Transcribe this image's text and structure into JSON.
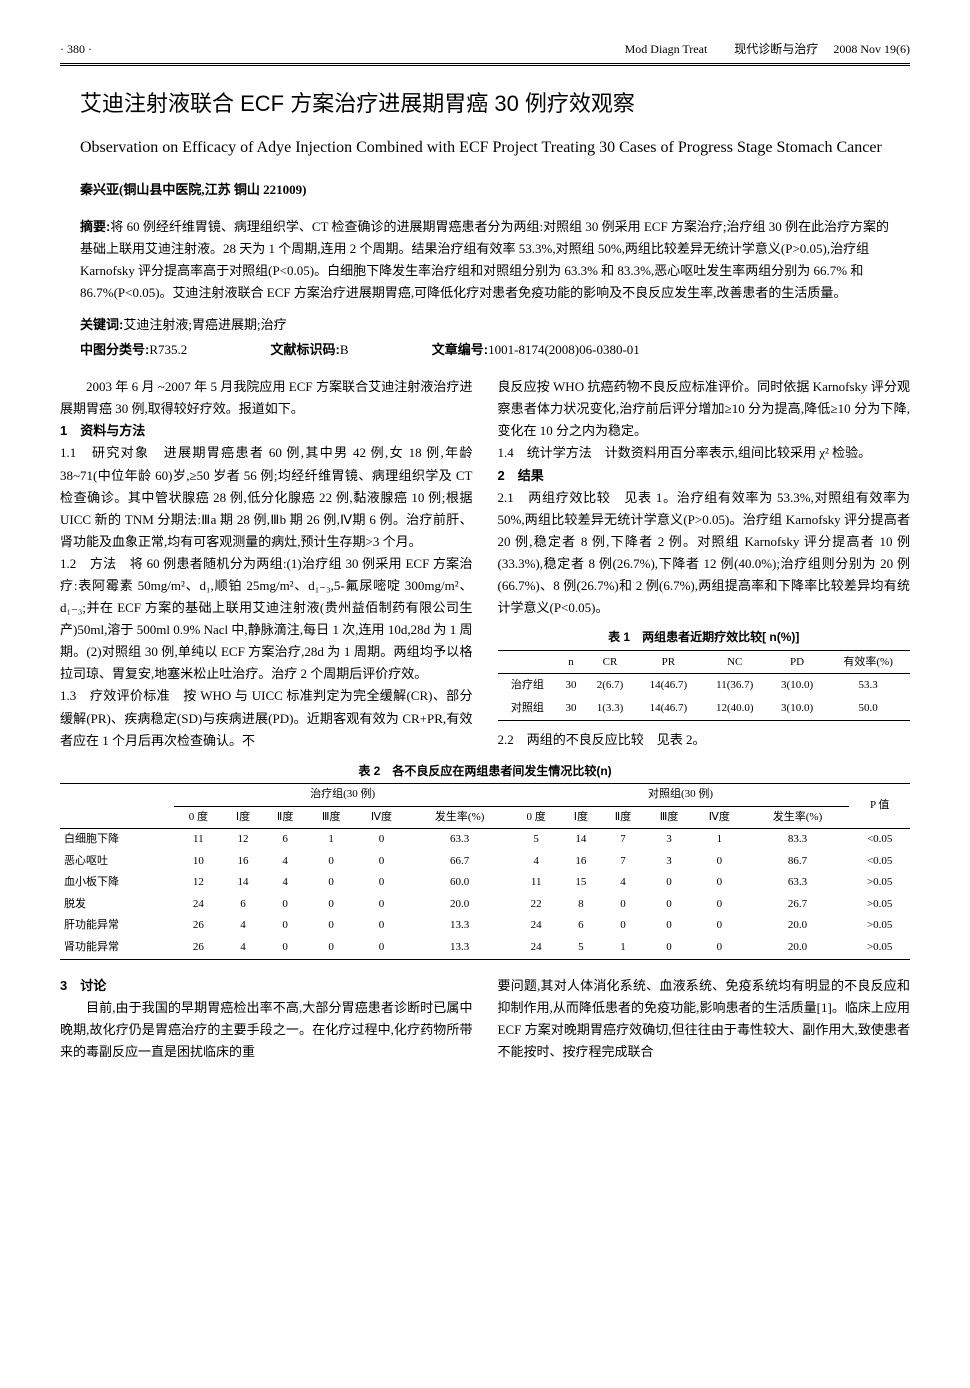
{
  "header": {
    "page_num": "· 380 ·",
    "journal_en": "Mod Diagn Treat",
    "journal_cn": "现代诊断与治疗",
    "issue": "2008  Nov 19(6)"
  },
  "title_cn": "艾迪注射液联合 ECF 方案治疗进展期胃癌 30 例疗效观察",
  "title_en": "Observation on Efficacy of Adye Injection Combined with ECF Project Treating 30 Cases of Progress Stage Stomach Cancer",
  "author": "秦兴亚(铜山县中医院,江苏 铜山 221009)",
  "abstract_label": "摘要:",
  "abstract": "将 60 例经纤维胃镜、病理组织学、CT 检查确诊的进展期胃癌患者分为两组:对照组 30 例采用 ECF 方案治疗;治疗组 30 例在此治疗方案的基础上联用艾迪注射液。28 天为 1 个周期,连用 2 个周期。结果治疗组有效率 53.3%,对照组 50%,两组比较差异无统计学意义(P>0.05),治疗组 Karnofsky 评分提高率高于对照组(P<0.05)。白细胞下降发生率治疗组和对照组分别为 63.3% 和 83.3%,恶心呕吐发生率两组分别为 66.7% 和 86.7%(P<0.05)。艾迪注射液联合 ECF 方案治疗进展期胃癌,可降低化疗对患者免疫功能的影响及不良反应发生率,改善患者的生活质量。",
  "keywords_label": "关键词:",
  "keywords": "艾迪注射液;胃癌进展期;治疗",
  "classify": {
    "clc_label": "中图分类号:",
    "clc": "R735.2",
    "doc_label": "文献标识码:",
    "doc": "B",
    "id_label": "文章编号:",
    "id": "1001-8174(2008)06-0380-01"
  },
  "body": {
    "intro": "2003 年 6 月 ~2007 年 5 月我院应用 ECF 方案联合艾迪注射液治疗进展期胃癌 30 例,取得较好疗效。报道如下。",
    "s1": "1　资料与方法",
    "s11": "1.1　研究对象　进展期胃癌患者 60 例,其中男 42 例,女 18 例,年龄 38~71(中位年龄 60)岁,≥50 岁者 56 例;均经纤维胃镜、病理组织学及 CT 检查确诊。其中管状腺癌 28 例,低分化腺癌 22 例,黏液腺癌 10 例;根据 UICC 新的 TNM 分期法:Ⅲa 期 28 例,Ⅲb 期 26 例,Ⅳ期 6 例。治疗前肝、肾功能及血象正常,均有可客观测量的病灶,预计生存期>3 个月。",
    "s12": "1.2　方法　将 60 例患者随机分为两组:(1)治疗组 30 例采用 ECF 方案治疗:表阿霉素 50mg/m²、d₁,顺铂 25mg/m²、d₁₋₃,5-氟尿嘧啶 300mg/m²、d₁₋₃;并在 ECF 方案的基础上联用艾迪注射液(贵州益佰制药有限公司生产)50ml,溶于 500ml 0.9% Nacl 中,静脉滴注,每日 1 次,连用 10d,28d 为 1 周期。(2)对照组 30 例,单纯以 ECF 方案治疗,28d 为 1 周期。两组均予以格拉司琼、胃复安,地塞米松止吐治疗。治疗 2 个周期后评价疗效。",
    "s13a": "1.3　疗效评价标准　按 WHO 与 UICC 标准判定为完全缓解(CR)、部分缓解(PR)、疾病稳定(SD)与疾病进展(PD)。近期客观有效为 CR+PR,有效者应在 1 个月后再次检查确认。不",
    "s13b": "良反应按 WHO 抗癌药物不良反应标准评价。同时依据 Karnofsky 评分观察患者体力状况变化,治疗前后评分增加≥10 分为提高,降低≥10 分为下降,变化在 10 分之内为稳定。",
    "s14": "1.4　统计学方法　计数资料用百分率表示,组间比较采用 χ² 检验。",
    "s2": "2　结果",
    "s21": "2.1　两组疗效比较　见表 1。治疗组有效率为 53.3%,对照组有效率为 50%,两组比较差异无统计学意义(P>0.05)。治疗组 Karnofsky 评分提高者 20 例,稳定者 8 例,下降者 2 例。对照组 Karnofsky 评分提高者 10 例(33.3%),稳定者 8 例(26.7%),下降者 12 例(40.0%);治疗组则分别为 20 例(66.7%)、8 例(26.7%)和 2 例(6.7%),两组提高率和下降率比较差异均有统计学意义(P<0.05)。",
    "s22": "2.2　两组的不良反应比较　见表 2。",
    "s3": "3　讨论",
    "disc1": "目前,由于我国的早期胃癌检出率不高,大部分胃癌患者诊断时已属中晚期,故化疗仍是胃癌治疗的主要手段之一。在化疗过程中,化疗药物所带来的毒副反应一直是困扰临床的重",
    "disc2": "要问题,其对人体消化系统、血液系统、免疫系统均有明显的不良反应和抑制作用,从而降低患者的免疫功能,影响患者的生活质量[1]。临床上应用 ECF 方案对晚期胃癌疗效确切,但往往由于毒性较大、副作用大,致使患者不能按时、按疗程完成联合"
  },
  "table1": {
    "caption": "表 1　两组患者近期疗效比较[ n(%)]",
    "headers": [
      "",
      "n",
      "CR",
      "PR",
      "NC",
      "PD",
      "有效率(%)"
    ],
    "rows": [
      [
        "治疗组",
        "30",
        "2(6.7)",
        "14(46.7)",
        "11(36.7)",
        "3(10.0)",
        "53.3"
      ],
      [
        "对照组",
        "30",
        "1(3.3)",
        "14(46.7)",
        "12(40.0)",
        "3(10.0)",
        "50.0"
      ]
    ]
  },
  "table2": {
    "caption": "表 2　各不良反应在两组患者间发生情况比较(n)",
    "group_headers": [
      "",
      "治疗组(30 例)",
      "对照组(30 例)",
      ""
    ],
    "sub_headers": [
      "",
      "0 度",
      "Ⅰ度",
      "Ⅱ度",
      "Ⅲ度",
      "Ⅳ度",
      "发生率(%)",
      "0 度",
      "Ⅰ度",
      "Ⅱ度",
      "Ⅲ度",
      "Ⅳ度",
      "发生率(%)",
      "P 值"
    ],
    "rows": [
      [
        "白细胞下降",
        "11",
        "12",
        "6",
        "1",
        "0",
        "63.3",
        "5",
        "14",
        "7",
        "3",
        "1",
        "83.3",
        "<0.05"
      ],
      [
        "恶心呕吐",
        "10",
        "16",
        "4",
        "0",
        "0",
        "66.7",
        "4",
        "16",
        "7",
        "3",
        "0",
        "86.7",
        "<0.05"
      ],
      [
        "血小板下降",
        "12",
        "14",
        "4",
        "0",
        "0",
        "60.0",
        "11",
        "15",
        "4",
        "0",
        "0",
        "63.3",
        ">0.05"
      ],
      [
        "脱发",
        "24",
        "6",
        "0",
        "0",
        "0",
        "20.0",
        "22",
        "8",
        "0",
        "0",
        "0",
        "26.7",
        ">0.05"
      ],
      [
        "肝功能异常",
        "26",
        "4",
        "0",
        "0",
        "0",
        "13.3",
        "24",
        "6",
        "0",
        "0",
        "0",
        "20.0",
        ">0.05"
      ],
      [
        "肾功能异常",
        "26",
        "4",
        "0",
        "0",
        "0",
        "13.3",
        "24",
        "5",
        "1",
        "0",
        "0",
        "20.0",
        ">0.05"
      ]
    ]
  }
}
